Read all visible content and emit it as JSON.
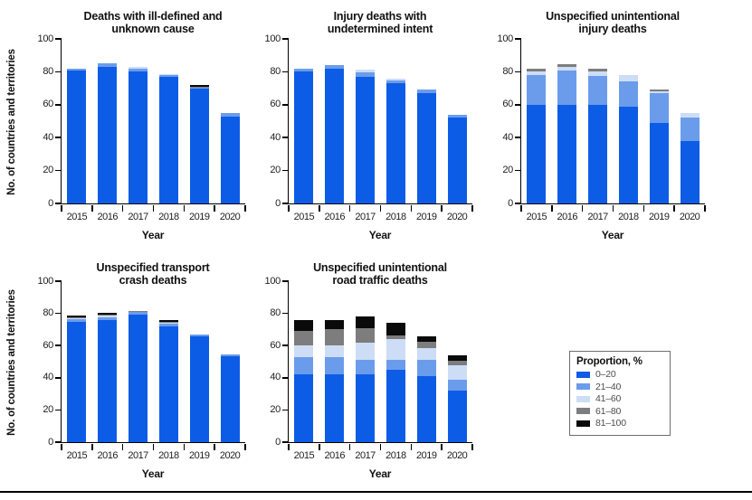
{
  "figure": {
    "x_axis_label": "Year",
    "y_axis_label": "No. of countries and territories",
    "legend": {
      "title": "Proportion, %",
      "items": [
        {
          "label": "0–20",
          "color": "#0d5ce6"
        },
        {
          "label": "21–40",
          "color": "#6b9ceb"
        },
        {
          "label": "41–60",
          "color": "#cdddf6"
        },
        {
          "label": "61–80",
          "color": "#7d7d7d"
        },
        {
          "label": "81–100",
          "color": "#0a0a0a"
        }
      ]
    }
  },
  "chart_data": [
    {
      "type": "bar",
      "stacked": true,
      "title": "Deaths with ill-defined and unknown cause",
      "title_lines": [
        "Deaths with ill-defined and",
        "unknown cause"
      ],
      "categories": [
        "2015",
        "2016",
        "2017",
        "2018",
        "2019",
        "2020"
      ],
      "series": [
        {
          "name": "0–20",
          "values": [
            81,
            83,
            80,
            77,
            70,
            53
          ]
        },
        {
          "name": "21–40",
          "values": [
            1,
            2,
            2,
            1,
            0.5,
            2
          ]
        },
        {
          "name": "41–60",
          "values": [
            0,
            0,
            1,
            0.5,
            0,
            0
          ]
        },
        {
          "name": "61–80",
          "values": [
            0,
            0,
            0,
            0,
            0.5,
            0
          ]
        },
        {
          "name": "81–100",
          "values": [
            0,
            0,
            0,
            0,
            1,
            0
          ]
        }
      ],
      "xlabel": "Year",
      "ylabel": "No. of countries and territories",
      "ylim": [
        0,
        100
      ],
      "yticks": [
        0,
        20,
        40,
        60,
        80,
        100
      ],
      "grid": false
    },
    {
      "type": "bar",
      "stacked": true,
      "title": "Injury deaths with undetermined intent",
      "title_lines": [
        "Injury deaths with",
        "undetermined intent"
      ],
      "categories": [
        "2015",
        "2016",
        "2017",
        "2018",
        "2019",
        "2020"
      ],
      "series": [
        {
          "name": "0–20",
          "values": [
            80,
            82,
            77,
            73,
            67,
            52
          ]
        },
        {
          "name": "21–40",
          "values": [
            2,
            2,
            2.5,
            2,
            2,
            2
          ]
        },
        {
          "name": "41–60",
          "values": [
            0,
            0,
            2,
            1,
            0,
            0
          ]
        },
        {
          "name": "61–80",
          "values": [
            0,
            0,
            0,
            0,
            0,
            0
          ]
        },
        {
          "name": "81–100",
          "values": [
            0,
            0,
            0,
            0,
            0,
            0
          ]
        }
      ],
      "xlabel": "Year",
      "ylabel": "No. of countries and territories",
      "ylim": [
        0,
        100
      ],
      "yticks": [
        0,
        20,
        40,
        60,
        80,
        100
      ],
      "grid": false
    },
    {
      "type": "bar",
      "stacked": true,
      "title": "Unspecified unintentional injury deaths",
      "title_lines": [
        "Unspecified unintentional",
        "injury deaths"
      ],
      "categories": [
        "2015",
        "2016",
        "2017",
        "2018",
        "2019",
        "2020"
      ],
      "series": [
        {
          "name": "0–20",
          "values": [
            60,
            60,
            60,
            59,
            49,
            38
          ]
        },
        {
          "name": "21–40",
          "values": [
            18,
            21,
            17.5,
            15,
            18,
            14
          ]
        },
        {
          "name": "41–60",
          "values": [
            2,
            2,
            3,
            4,
            1,
            3
          ]
        },
        {
          "name": "61–80",
          "values": [
            2,
            1.5,
            1.5,
            0,
            1,
            0
          ]
        },
        {
          "name": "81–100",
          "values": [
            0,
            0,
            0,
            0,
            0,
            0
          ]
        }
      ],
      "xlabel": "Year",
      "ylabel": "No. of countries and territories",
      "ylim": [
        0,
        100
      ],
      "yticks": [
        0,
        20,
        40,
        60,
        80,
        100
      ],
      "grid": false
    },
    {
      "type": "bar",
      "stacked": true,
      "title": "Unspecified transport crash deaths",
      "title_lines": [
        "Unspecified transport",
        "crash deaths"
      ],
      "categories": [
        "2015",
        "2016",
        "2017",
        "2018",
        "2019",
        "2020"
      ],
      "series": [
        {
          "name": "0–20",
          "values": [
            75,
            76,
            79,
            72,
            65.5,
            53.5
          ]
        },
        {
          "name": "21–40",
          "values": [
            1.5,
            1.5,
            2,
            1.5,
            1.5,
            1
          ]
        },
        {
          "name": "41–60",
          "values": [
            0.5,
            1,
            0,
            1,
            0,
            0
          ]
        },
        {
          "name": "61–80",
          "values": [
            0.5,
            0.5,
            0.5,
            0.5,
            0,
            0
          ]
        },
        {
          "name": "81–100",
          "values": [
            1,
            1.5,
            0,
            1,
            0,
            0
          ]
        }
      ],
      "xlabel": "Year",
      "ylabel": "No. of countries and territories",
      "ylim": [
        0,
        100
      ],
      "yticks": [
        0,
        20,
        40,
        60,
        80,
        100
      ],
      "grid": false
    },
    {
      "type": "bar",
      "stacked": true,
      "title": "Unspecified unintentional road traffic deaths",
      "title_lines": [
        "Unspecified unintentional",
        "road traffic deaths"
      ],
      "categories": [
        "2015",
        "2016",
        "2017",
        "2018",
        "2019",
        "2020"
      ],
      "series": [
        {
          "name": "0–20",
          "values": [
            42,
            42,
            42,
            45,
            41,
            32
          ]
        },
        {
          "name": "21–40",
          "values": [
            11,
            11,
            9,
            6,
            10,
            7
          ]
        },
        {
          "name": "41–60",
          "values": [
            7,
            7,
            11,
            13,
            7.5,
            9
          ]
        },
        {
          "name": "61–80",
          "values": [
            9,
            10,
            9,
            2.5,
            4,
            2.5
          ]
        },
        {
          "name": "81–100",
          "values": [
            7,
            6,
            7,
            7.5,
            3.5,
            3.5
          ]
        }
      ],
      "xlabel": "Year",
      "ylabel": "No. of countries and territories",
      "ylim": [
        0,
        100
      ],
      "yticks": [
        0,
        20,
        40,
        60,
        80,
        100
      ],
      "grid": false
    }
  ]
}
